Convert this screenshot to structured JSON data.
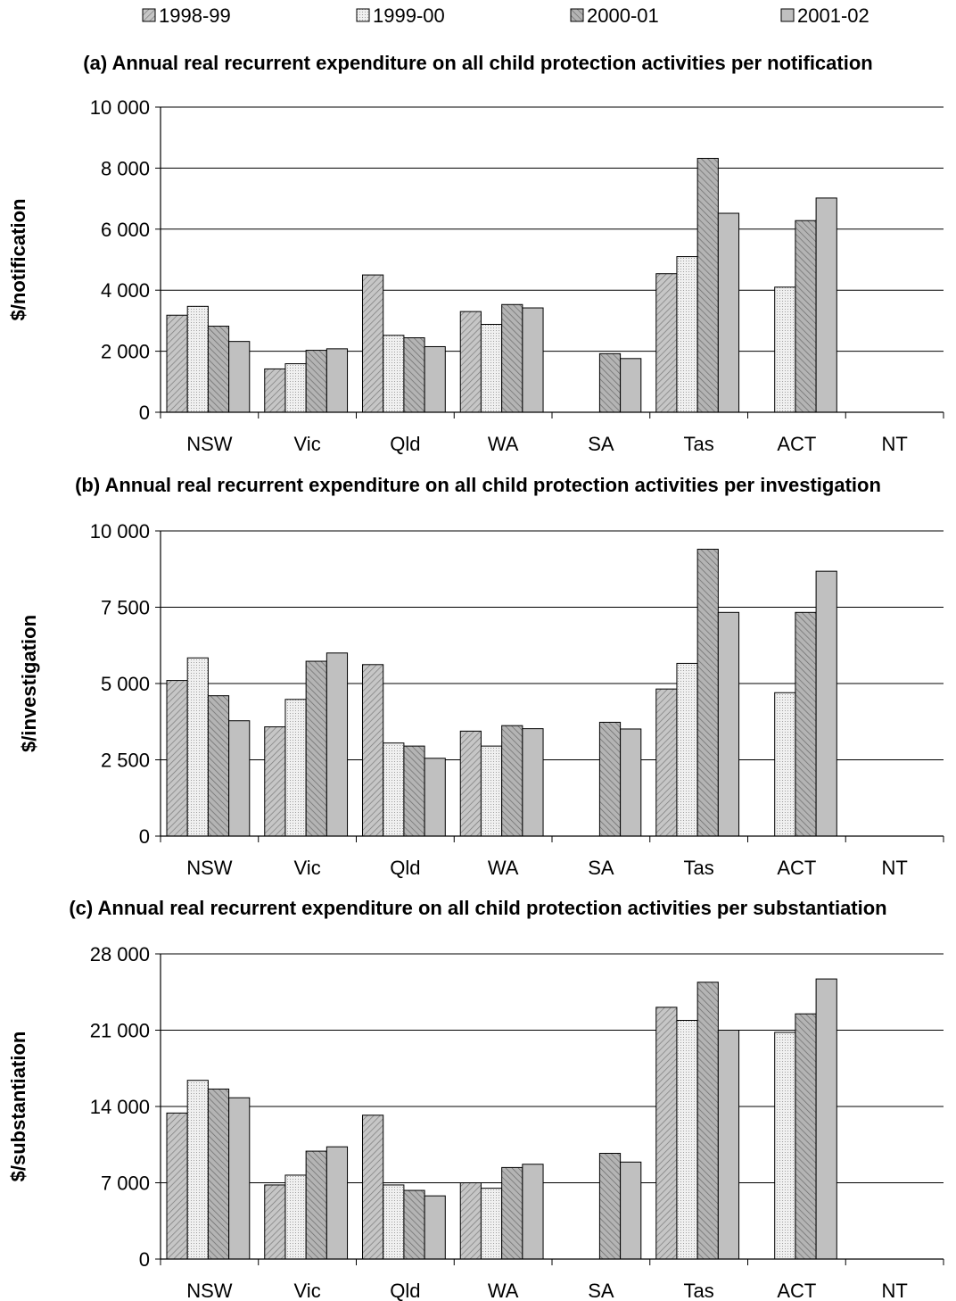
{
  "colors": {
    "1998-99": "#b8b8b8",
    "1999-00": "#e6e6e6",
    "2000-01": "#a8a8a8",
    "2001-02": "#c0c0c0"
  },
  "legend": [
    "1998-99",
    "1999-00",
    "2000-01",
    "2001-02"
  ],
  "chart_data": [
    {
      "type": "bar",
      "title": "(a) Annual real recurrent expenditure on all child protection activities per notification",
      "ylabel": "$/notification",
      "categories": [
        "NSW",
        "Vic",
        "Qld",
        "WA",
        "SA",
        "Tas",
        "ACT",
        "NT"
      ],
      "ylim": [
        0,
        10000
      ],
      "yticks": [
        0,
        2000,
        4000,
        6000,
        8000,
        10000
      ],
      "ytick_labels": [
        "0",
        "2 000",
        "4 000",
        "6 000",
        "8 000",
        "10 000"
      ],
      "grid": true,
      "series": [
        {
          "name": "1998-99",
          "values": [
            3180,
            1420,
            4500,
            3300,
            null,
            4540,
            null,
            null
          ]
        },
        {
          "name": "1999-00",
          "values": [
            3470,
            1590,
            2520,
            2880,
            null,
            5100,
            4100,
            null
          ]
        },
        {
          "name": "2000-01",
          "values": [
            2820,
            2030,
            2440,
            3530,
            1920,
            8320,
            6280,
            null
          ]
        },
        {
          "name": "2001-02",
          "values": [
            2320,
            2080,
            2150,
            3420,
            1760,
            6520,
            7020,
            null
          ]
        }
      ]
    },
    {
      "type": "bar",
      "title": "(b) Annual real recurrent expenditure on all child protection activities per investigation",
      "ylabel": "$/investigation",
      "categories": [
        "NSW",
        "Vic",
        "Qld",
        "WA",
        "SA",
        "Tas",
        "ACT",
        "NT"
      ],
      "ylim": [
        0,
        10000
      ],
      "yticks": [
        0,
        2500,
        5000,
        7500,
        10000
      ],
      "ytick_labels": [
        "0",
        "2 500",
        "5 000",
        "7 500",
        "10 000"
      ],
      "grid": true,
      "series": [
        {
          "name": "1998-99",
          "values": [
            5100,
            3580,
            5620,
            3440,
            null,
            4820,
            null,
            null
          ]
        },
        {
          "name": "1999-00",
          "values": [
            5840,
            4480,
            3050,
            2950,
            null,
            5660,
            4700,
            null
          ]
        },
        {
          "name": "2000-01",
          "values": [
            4600,
            5730,
            2950,
            3620,
            3730,
            9400,
            7330,
            null
          ]
        },
        {
          "name": "2001-02",
          "values": [
            3780,
            6000,
            2550,
            3520,
            3510,
            7330,
            8680,
            null
          ]
        }
      ]
    },
    {
      "type": "bar",
      "title": "(c) Annual real recurrent expenditure on all child protection activities per substantiation",
      "ylabel": "$/substantiation",
      "categories": [
        "NSW",
        "Vic",
        "Qld",
        "WA",
        "SA",
        "Tas",
        "ACT",
        "NT"
      ],
      "ylim": [
        0,
        28000
      ],
      "yticks": [
        0,
        7000,
        14000,
        21000,
        28000
      ],
      "ytick_labels": [
        "0",
        "7 000",
        "14 000",
        "21 000",
        "28 000"
      ],
      "grid": true,
      "series": [
        {
          "name": "1998-99",
          "values": [
            13400,
            6800,
            13200,
            7000,
            null,
            23100,
            null,
            null
          ]
        },
        {
          "name": "1999-00",
          "values": [
            16400,
            7700,
            6800,
            6500,
            null,
            21900,
            20800,
            null
          ]
        },
        {
          "name": "2000-01",
          "values": [
            15600,
            9900,
            6300,
            8400,
            9700,
            25400,
            22500,
            null
          ]
        },
        {
          "name": "2001-02",
          "values": [
            14800,
            10300,
            5800,
            8700,
            8900,
            21000,
            25700,
            null
          ]
        }
      ]
    }
  ]
}
